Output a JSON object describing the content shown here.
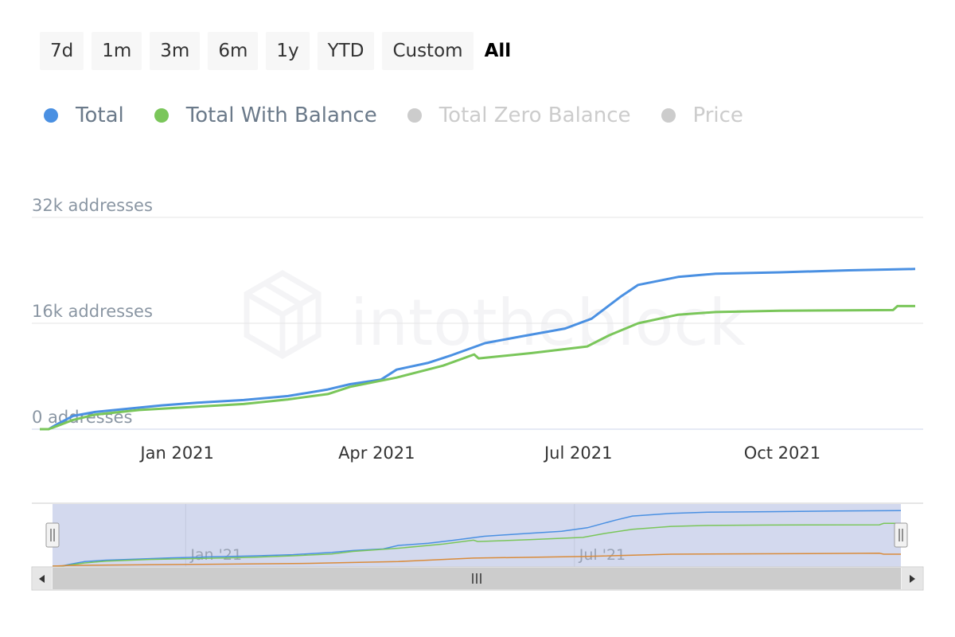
{
  "range_buttons": [
    "7d",
    "1m",
    "3m",
    "6m",
    "1y",
    "YTD",
    "Custom",
    "All"
  ],
  "active_range": "All",
  "legend": [
    {
      "label": "Total",
      "color": "#4a90e2",
      "active": true
    },
    {
      "label": "Total With Balance",
      "color": "#7ac65a",
      "active": true
    },
    {
      "label": "Total Zero Balance",
      "color": "#cccccc",
      "active": false
    },
    {
      "label": "Price",
      "color": "#cccccc",
      "active": false
    }
  ],
  "watermark": "intotheblock",
  "chart_data": {
    "type": "line",
    "y_ticks": [
      "0 addresses",
      "16k addresses",
      "32k addresses"
    ],
    "ylim": [
      0,
      32000
    ],
    "x_ticks": [
      "Jan 2021",
      "Apr 2021",
      "Jul 2021",
      "Oct 2021"
    ],
    "navigator_ticks": [
      "Jan '21",
      "Jul '21"
    ],
    "series": [
      {
        "name": "Total",
        "color": "#4a90e2",
        "points": [
          [
            "2020-10-31",
            0
          ],
          [
            "2020-11-04",
            0
          ],
          [
            "2020-11-08",
            800
          ],
          [
            "2020-11-15",
            2000
          ],
          [
            "2020-11-25",
            2600
          ],
          [
            "2020-12-10",
            3100
          ],
          [
            "2020-12-25",
            3600
          ],
          [
            "2021-01-10",
            4000
          ],
          [
            "2021-01-31",
            4400
          ],
          [
            "2021-02-20",
            5000
          ],
          [
            "2021-03-10",
            6000
          ],
          [
            "2021-03-20",
            6800
          ],
          [
            "2021-04-03",
            7500
          ],
          [
            "2021-04-10",
            9000
          ],
          [
            "2021-04-24",
            10000
          ],
          [
            "2021-05-05",
            11200
          ],
          [
            "2021-05-20",
            13000
          ],
          [
            "2021-06-05",
            14000
          ],
          [
            "2021-06-25",
            15200
          ],
          [
            "2021-07-07",
            16700
          ],
          [
            "2021-07-20",
            20000
          ],
          [
            "2021-07-28",
            21800
          ],
          [
            "2021-08-15",
            23000
          ],
          [
            "2021-09-01",
            23500
          ],
          [
            "2021-09-30",
            23700
          ],
          [
            "2021-10-31",
            24000
          ],
          [
            "2021-11-30",
            24200
          ]
        ]
      },
      {
        "name": "Total With Balance",
        "color": "#7ac65a",
        "points": [
          [
            "2020-10-31",
            0
          ],
          [
            "2020-11-04",
            0
          ],
          [
            "2020-11-08",
            500
          ],
          [
            "2020-11-15",
            1400
          ],
          [
            "2020-11-25",
            2200
          ],
          [
            "2020-12-15",
            2900
          ],
          [
            "2021-01-10",
            3400
          ],
          [
            "2021-01-31",
            3800
          ],
          [
            "2021-02-20",
            4500
          ],
          [
            "2021-03-10",
            5300
          ],
          [
            "2021-03-20",
            6400
          ],
          [
            "2021-04-10",
            7800
          ],
          [
            "2021-05-01",
            9600
          ],
          [
            "2021-05-15",
            11300
          ],
          [
            "2021-05-17",
            10700
          ],
          [
            "2021-06-10",
            11500
          ],
          [
            "2021-07-05",
            12500
          ],
          [
            "2021-07-15",
            14200
          ],
          [
            "2021-07-28",
            16000
          ],
          [
            "2021-08-15",
            17300
          ],
          [
            "2021-09-01",
            17700
          ],
          [
            "2021-09-30",
            17900
          ],
          [
            "2021-11-20",
            18000
          ],
          [
            "2021-11-22",
            18600
          ],
          [
            "2021-11-30",
            18600
          ]
        ]
      },
      {
        "name": "Total Zero Balance",
        "color": "#d98b3a",
        "points": [
          [
            "2020-10-31",
            0
          ],
          [
            "2020-11-08",
            300
          ],
          [
            "2020-12-15",
            600
          ],
          [
            "2021-02-28",
            1200
          ],
          [
            "2021-04-10",
            2000
          ],
          [
            "2021-05-15",
            3500
          ],
          [
            "2021-07-05",
            4200
          ],
          [
            "2021-08-15",
            5200
          ],
          [
            "2021-11-20",
            5600
          ],
          [
            "2021-11-22",
            5200
          ],
          [
            "2021-11-30",
            5200
          ]
        ]
      }
    ]
  }
}
